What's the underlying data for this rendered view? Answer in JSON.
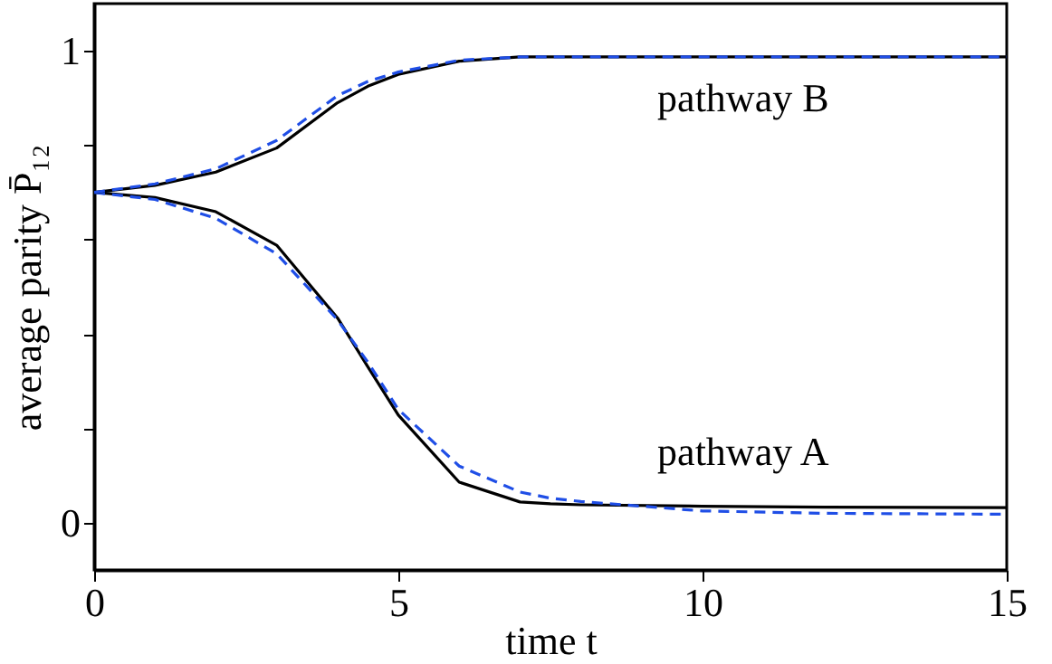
{
  "chart_data": {
    "type": "line",
    "xlabel": "time t",
    "ylabel": "average parity P̄₁₂",
    "x": [
      0,
      1,
      2,
      3,
      4,
      4.5,
      5,
      6,
      7,
      7.5,
      8,
      10,
      12,
      15
    ],
    "series": [
      {
        "color": "#000000",
        "line_style": "solid",
        "values": [
          0.7,
          0.689,
          0.659,
          0.588,
          0.434,
          0.33,
          0.228,
          0.086,
          0.044,
          0.04,
          0.038,
          0.035,
          0.033,
          0.032
        ]
      },
      {
        "color": "#1f4ee6",
        "line_style": "dashed",
        "values": [
          0.7,
          0.685,
          0.645,
          0.57,
          0.43,
          0.34,
          0.24,
          0.12,
          0.065,
          0.052,
          0.045,
          0.025,
          0.02,
          0.018
        ]
      },
      {
        "color": "#000000",
        "line_style": "solid",
        "values": [
          0.7,
          0.715,
          0.743,
          0.794,
          0.89,
          0.925,
          0.95,
          0.978,
          0.987,
          0.987,
          0.987,
          0.987,
          0.987,
          0.987
        ]
      },
      {
        "color": "#1f4ee6",
        "line_style": "dashed",
        "values": [
          0.7,
          0.718,
          0.75,
          0.81,
          0.905,
          0.935,
          0.955,
          0.98,
          0.987,
          0.987,
          0.987,
          0.987,
          0.987,
          0.987
        ]
      }
    ],
    "annotations": [
      "pathway B",
      "pathway A"
    ],
    "xlim": [
      0,
      15
    ],
    "xticks": [
      0,
      5,
      10,
      15
    ],
    "ylim": [
      -0.1,
      1.1
    ],
    "yticks": [
      0,
      {
        "value": 0.2,
        "label": null
      },
      {
        "value": 0.4,
        "label": null
      },
      {
        "value": 0.6,
        "label": null
      },
      {
        "value": 0.8,
        "label": null
      },
      1
    ],
    "grid": false
  }
}
